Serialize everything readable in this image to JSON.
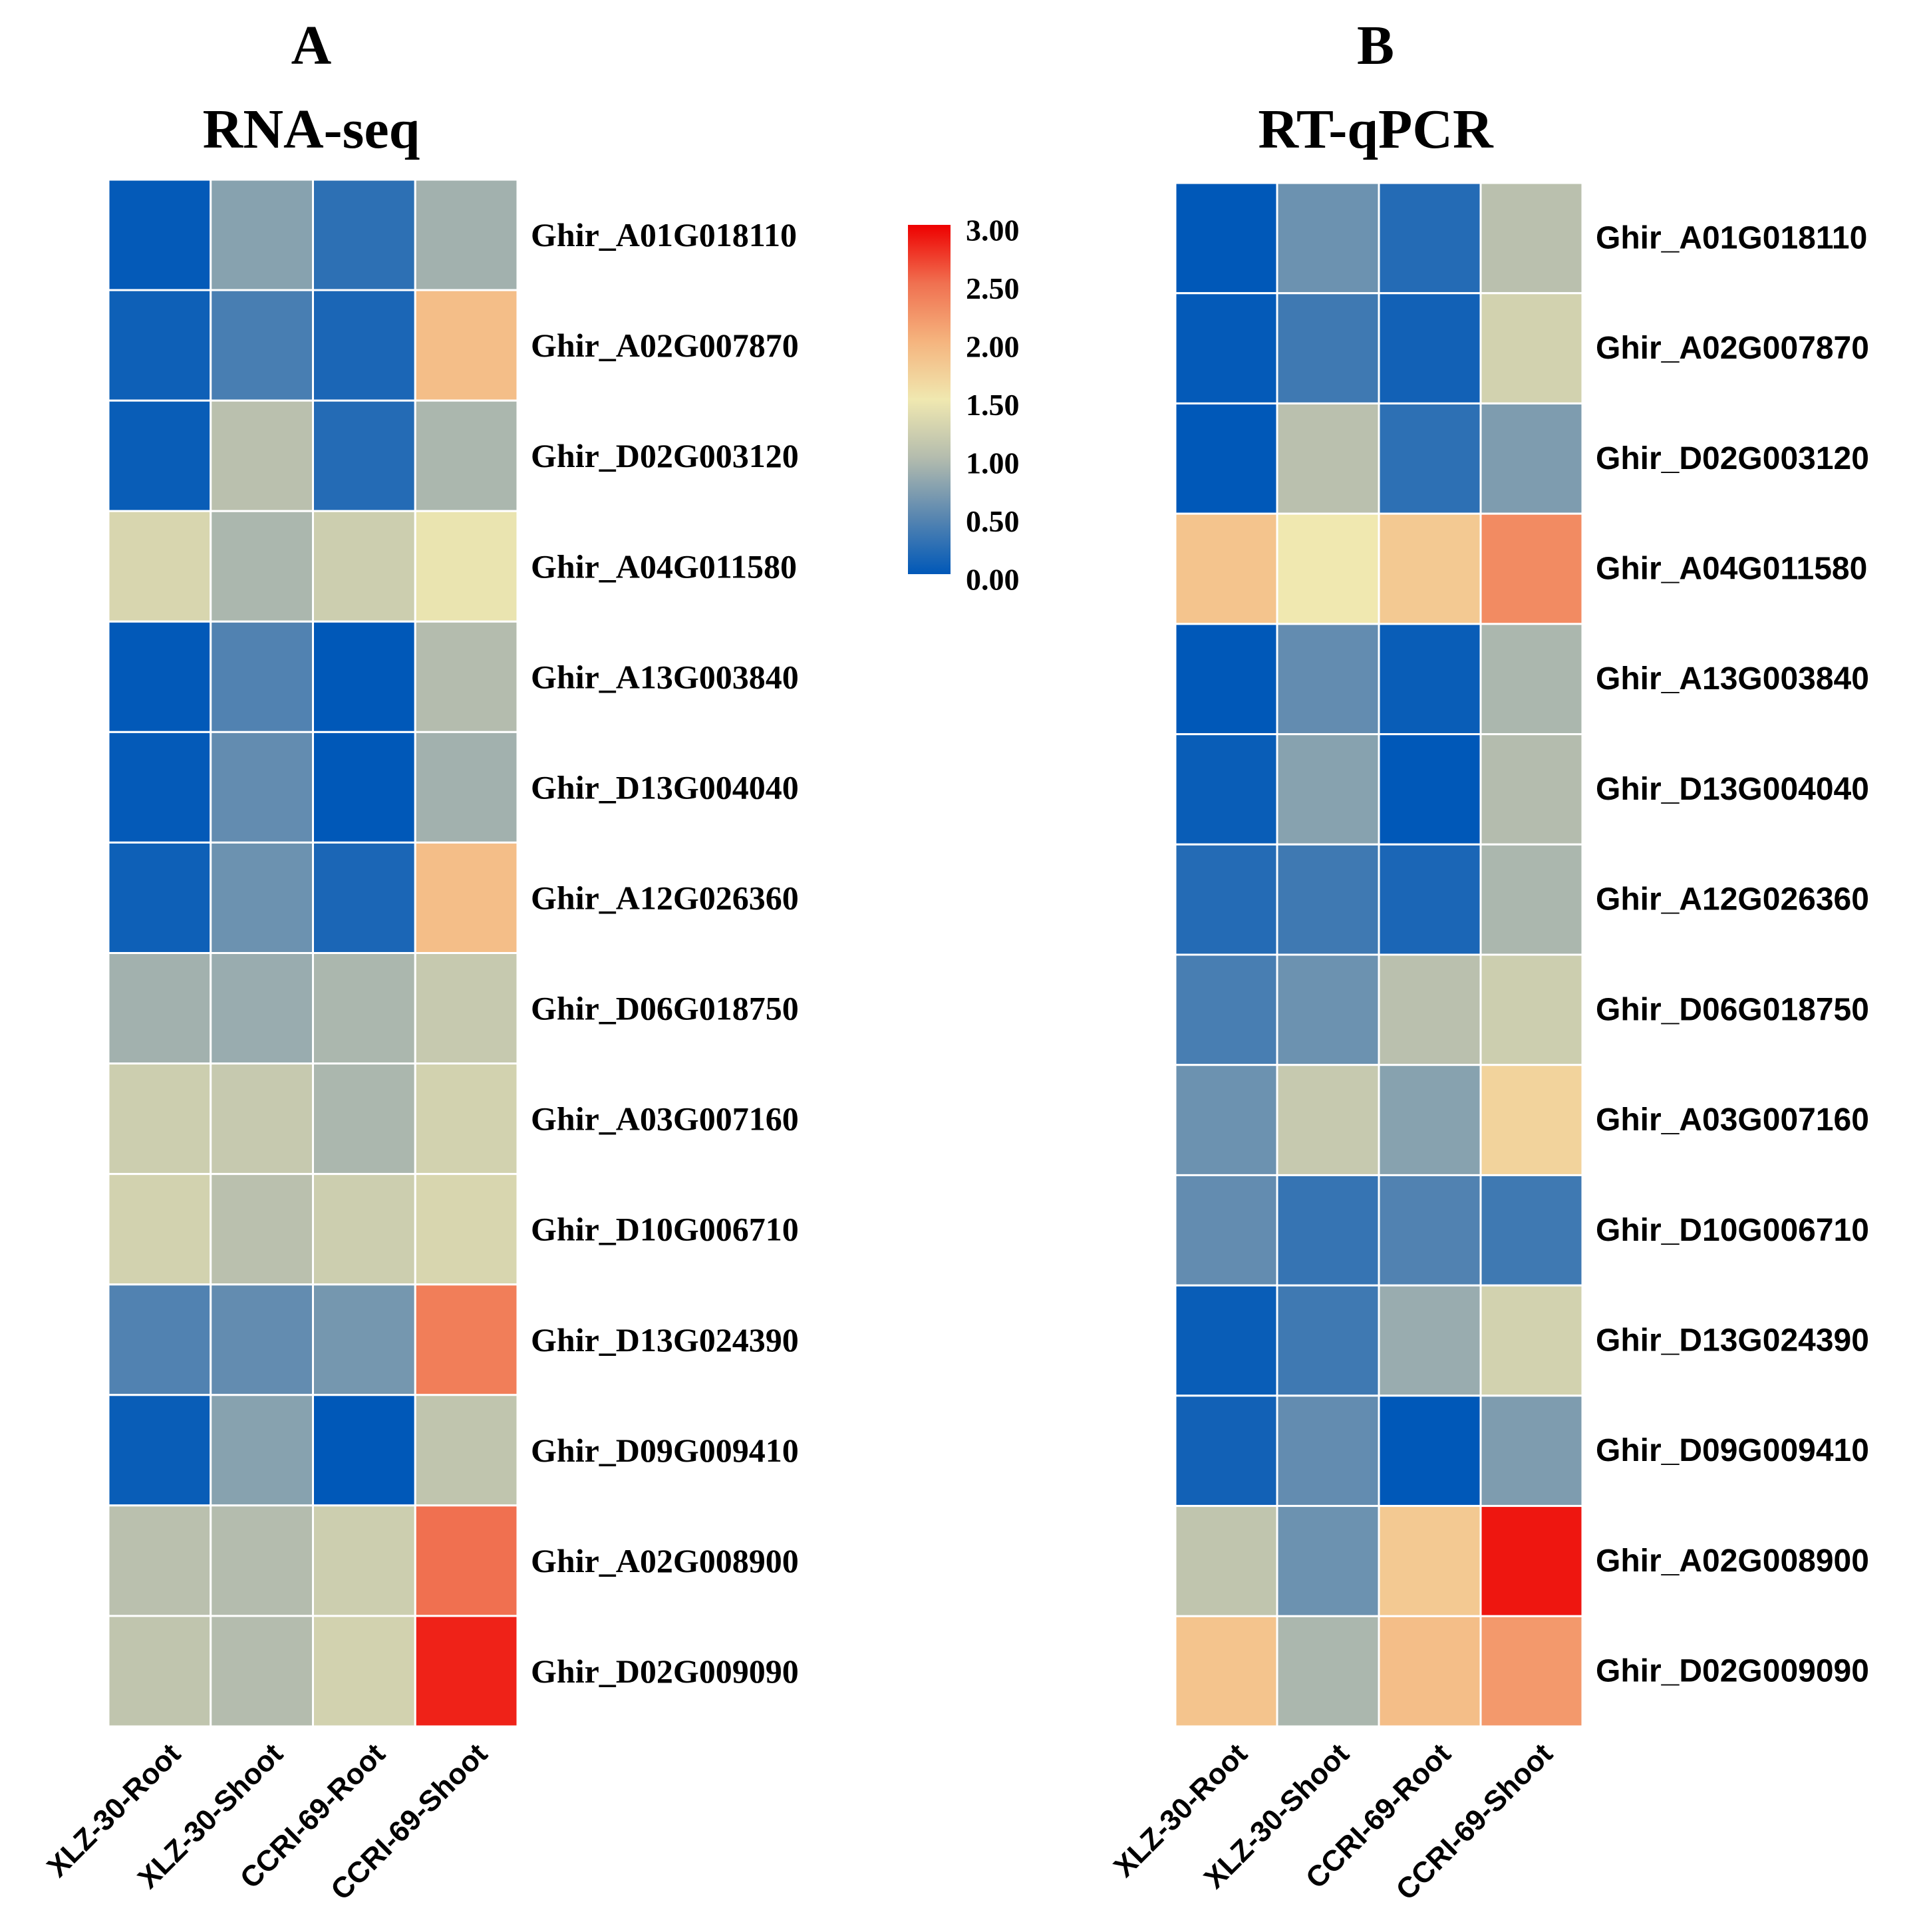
{
  "chart_data": [
    {
      "type": "heatmap",
      "panel_letter": "A",
      "title": "RNA-seq",
      "columns": [
        "XLZ-30-Root",
        "XLZ-30-Shoot",
        "CCRI-69-Root",
        "CCRI-69-Shoot"
      ],
      "rows": [
        "Ghir_A01G018110",
        "Ghir_A02G007870",
        "Ghir_D02G003120",
        "Ghir_A04G011580",
        "Ghir_A13G003840",
        "Ghir_D13G004040",
        "Ghir_A12G026360",
        "Ghir_D06G018750",
        "Ghir_A03G007160",
        "Ghir_D10G006710",
        "Ghir_D13G024390",
        "Ghir_D09G009410",
        "Ghir_A02G008900",
        "Ghir_D02G009090"
      ],
      "values": [
        [
          0.02,
          0.75,
          0.25,
          0.9
        ],
        [
          0.08,
          0.4,
          0.15,
          1.9
        ],
        [
          0.05,
          1.05,
          0.2,
          0.95
        ],
        [
          1.3,
          0.95,
          1.2,
          1.45
        ],
        [
          0.01,
          0.45,
          0.0,
          1.0
        ],
        [
          0.02,
          0.55,
          0.0,
          0.9
        ],
        [
          0.08,
          0.6,
          0.15,
          1.9
        ],
        [
          0.9,
          0.85,
          0.95,
          1.15
        ],
        [
          1.2,
          1.15,
          0.95,
          1.25
        ],
        [
          1.25,
          1.05,
          1.2,
          1.3
        ],
        [
          0.45,
          0.55,
          0.65,
          2.4
        ],
        [
          0.05,
          0.75,
          0.0,
          1.1
        ],
        [
          1.05,
          1.0,
          1.2,
          2.5
        ],
        [
          1.1,
          1.0,
          1.25,
          2.85
        ]
      ],
      "color_scale": {
        "min": 0.0,
        "max": 3.0
      }
    },
    {
      "type": "heatmap",
      "panel_letter": "B",
      "title": "RT-qPCR",
      "columns": [
        "XLZ-30-Root",
        "XLZ-30-Shoot",
        "CCRI-69-Root",
        "CCRI-69-Shoot"
      ],
      "rows": [
        "Ghir_A01G018110",
        "Ghir_A02G007870",
        "Ghir_D02G003120",
        "Ghir_A04G011580",
        "Ghir_A13G003840",
        "Ghir_D13G004040",
        "Ghir_A12G026360",
        "Ghir_D06G018750",
        "Ghir_A03G007160",
        "Ghir_D10G006710",
        "Ghir_D13G024390",
        "Ghir_D09G009410",
        "Ghir_A02G008900",
        "Ghir_D02G009090"
      ],
      "values": [
        [
          0.0,
          0.6,
          0.2,
          1.05
        ],
        [
          0.02,
          0.35,
          0.1,
          1.25
        ],
        [
          0.0,
          1.05,
          0.25,
          0.7
        ],
        [
          1.85,
          1.5,
          1.8,
          2.3
        ],
        [
          0.0,
          0.55,
          0.05,
          0.95
        ],
        [
          0.05,
          0.75,
          0.0,
          1.0
        ],
        [
          0.2,
          0.35,
          0.15,
          0.95
        ],
        [
          0.4,
          0.6,
          1.05,
          1.2
        ],
        [
          0.6,
          1.15,
          0.75,
          1.7
        ],
        [
          0.55,
          0.3,
          0.45,
          0.35
        ],
        [
          0.05,
          0.35,
          0.85,
          1.25
        ],
        [
          0.1,
          0.55,
          0.0,
          0.7
        ],
        [
          1.1,
          0.6,
          1.8,
          2.9
        ],
        [
          1.85,
          0.95,
          1.9,
          2.2
        ]
      ],
      "color_scale": {
        "min": 0.0,
        "max": 3.0
      }
    }
  ],
  "legend": {
    "ticks": [
      "3.00",
      "2.50",
      "2.00",
      "1.50",
      "1.00",
      "0.50",
      "0.00"
    ],
    "gradient_stops": [
      "#0058b8",
      "#5a87b0",
      "#b4bcae",
      "#f0e8b0",
      "#f5b47e",
      "#f07050",
      "#ee0000"
    ]
  }
}
